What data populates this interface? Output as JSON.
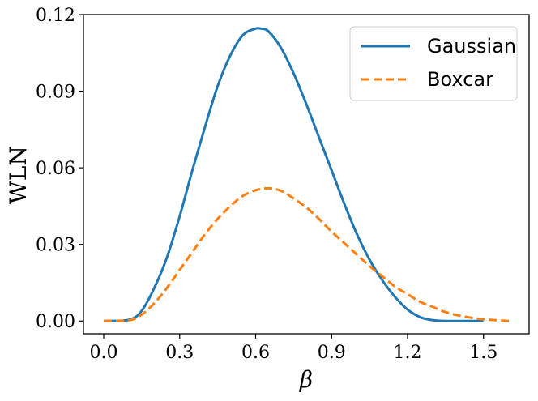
{
  "chart_data": {
    "type": "line",
    "title": "",
    "xlabel": "β",
    "ylabel": "WLN",
    "xlim": [
      -0.08,
      1.68
    ],
    "ylim": [
      -0.005,
      0.12
    ],
    "x_ticks": [
      0.0,
      0.3,
      0.6,
      0.9,
      1.2,
      1.5
    ],
    "x_tick_labels": [
      "0.0",
      "0.3",
      "0.6",
      "0.9",
      "1.2",
      "1.5"
    ],
    "y_ticks": [
      0.0,
      0.03,
      0.06,
      0.09,
      0.12
    ],
    "y_tick_labels": [
      "0.00",
      "0.03",
      "0.06",
      "0.09",
      "0.12"
    ],
    "grid": false,
    "legend_position": "top-right",
    "series": [
      {
        "name": "Gaussian",
        "color": "#1f77b4",
        "style": "solid",
        "x": [
          0.0,
          0.1,
          0.15,
          0.2,
          0.25,
          0.3,
          0.35,
          0.4,
          0.45,
          0.5,
          0.55,
          0.6,
          0.62,
          0.65,
          0.7,
          0.75,
          0.8,
          0.85,
          0.9,
          0.95,
          1.0,
          1.05,
          1.1,
          1.15,
          1.2,
          1.25,
          1.3,
          1.35,
          1.4,
          1.45,
          1.5
        ],
        "y": [
          0.0,
          0.0005,
          0.004,
          0.013,
          0.025,
          0.041,
          0.059,
          0.076,
          0.092,
          0.104,
          0.112,
          0.1145,
          0.1145,
          0.1135,
          0.107,
          0.097,
          0.085,
          0.072,
          0.059,
          0.046,
          0.034,
          0.024,
          0.016,
          0.0095,
          0.0045,
          0.0015,
          0.0003,
          0.0,
          0.0,
          0.0,
          0.0
        ]
      },
      {
        "name": "Boxcar",
        "color": "#ff7f0e",
        "style": "dashed",
        "x": [
          0.0,
          0.1,
          0.15,
          0.2,
          0.25,
          0.3,
          0.35,
          0.4,
          0.45,
          0.5,
          0.55,
          0.6,
          0.65,
          0.7,
          0.75,
          0.8,
          0.85,
          0.9,
          0.95,
          1.0,
          1.05,
          1.1,
          1.15,
          1.2,
          1.25,
          1.3,
          1.35,
          1.4,
          1.45,
          1.5,
          1.55,
          1.6
        ],
        "y": [
          0.0,
          0.0003,
          0.0025,
          0.007,
          0.013,
          0.02,
          0.027,
          0.034,
          0.04,
          0.045,
          0.049,
          0.0512,
          0.052,
          0.051,
          0.048,
          0.0445,
          0.04,
          0.035,
          0.0305,
          0.026,
          0.0215,
          0.0175,
          0.0135,
          0.0105,
          0.0075,
          0.0055,
          0.0035,
          0.0022,
          0.0013,
          0.0007,
          0.0003,
          0.0
        ]
      }
    ]
  }
}
